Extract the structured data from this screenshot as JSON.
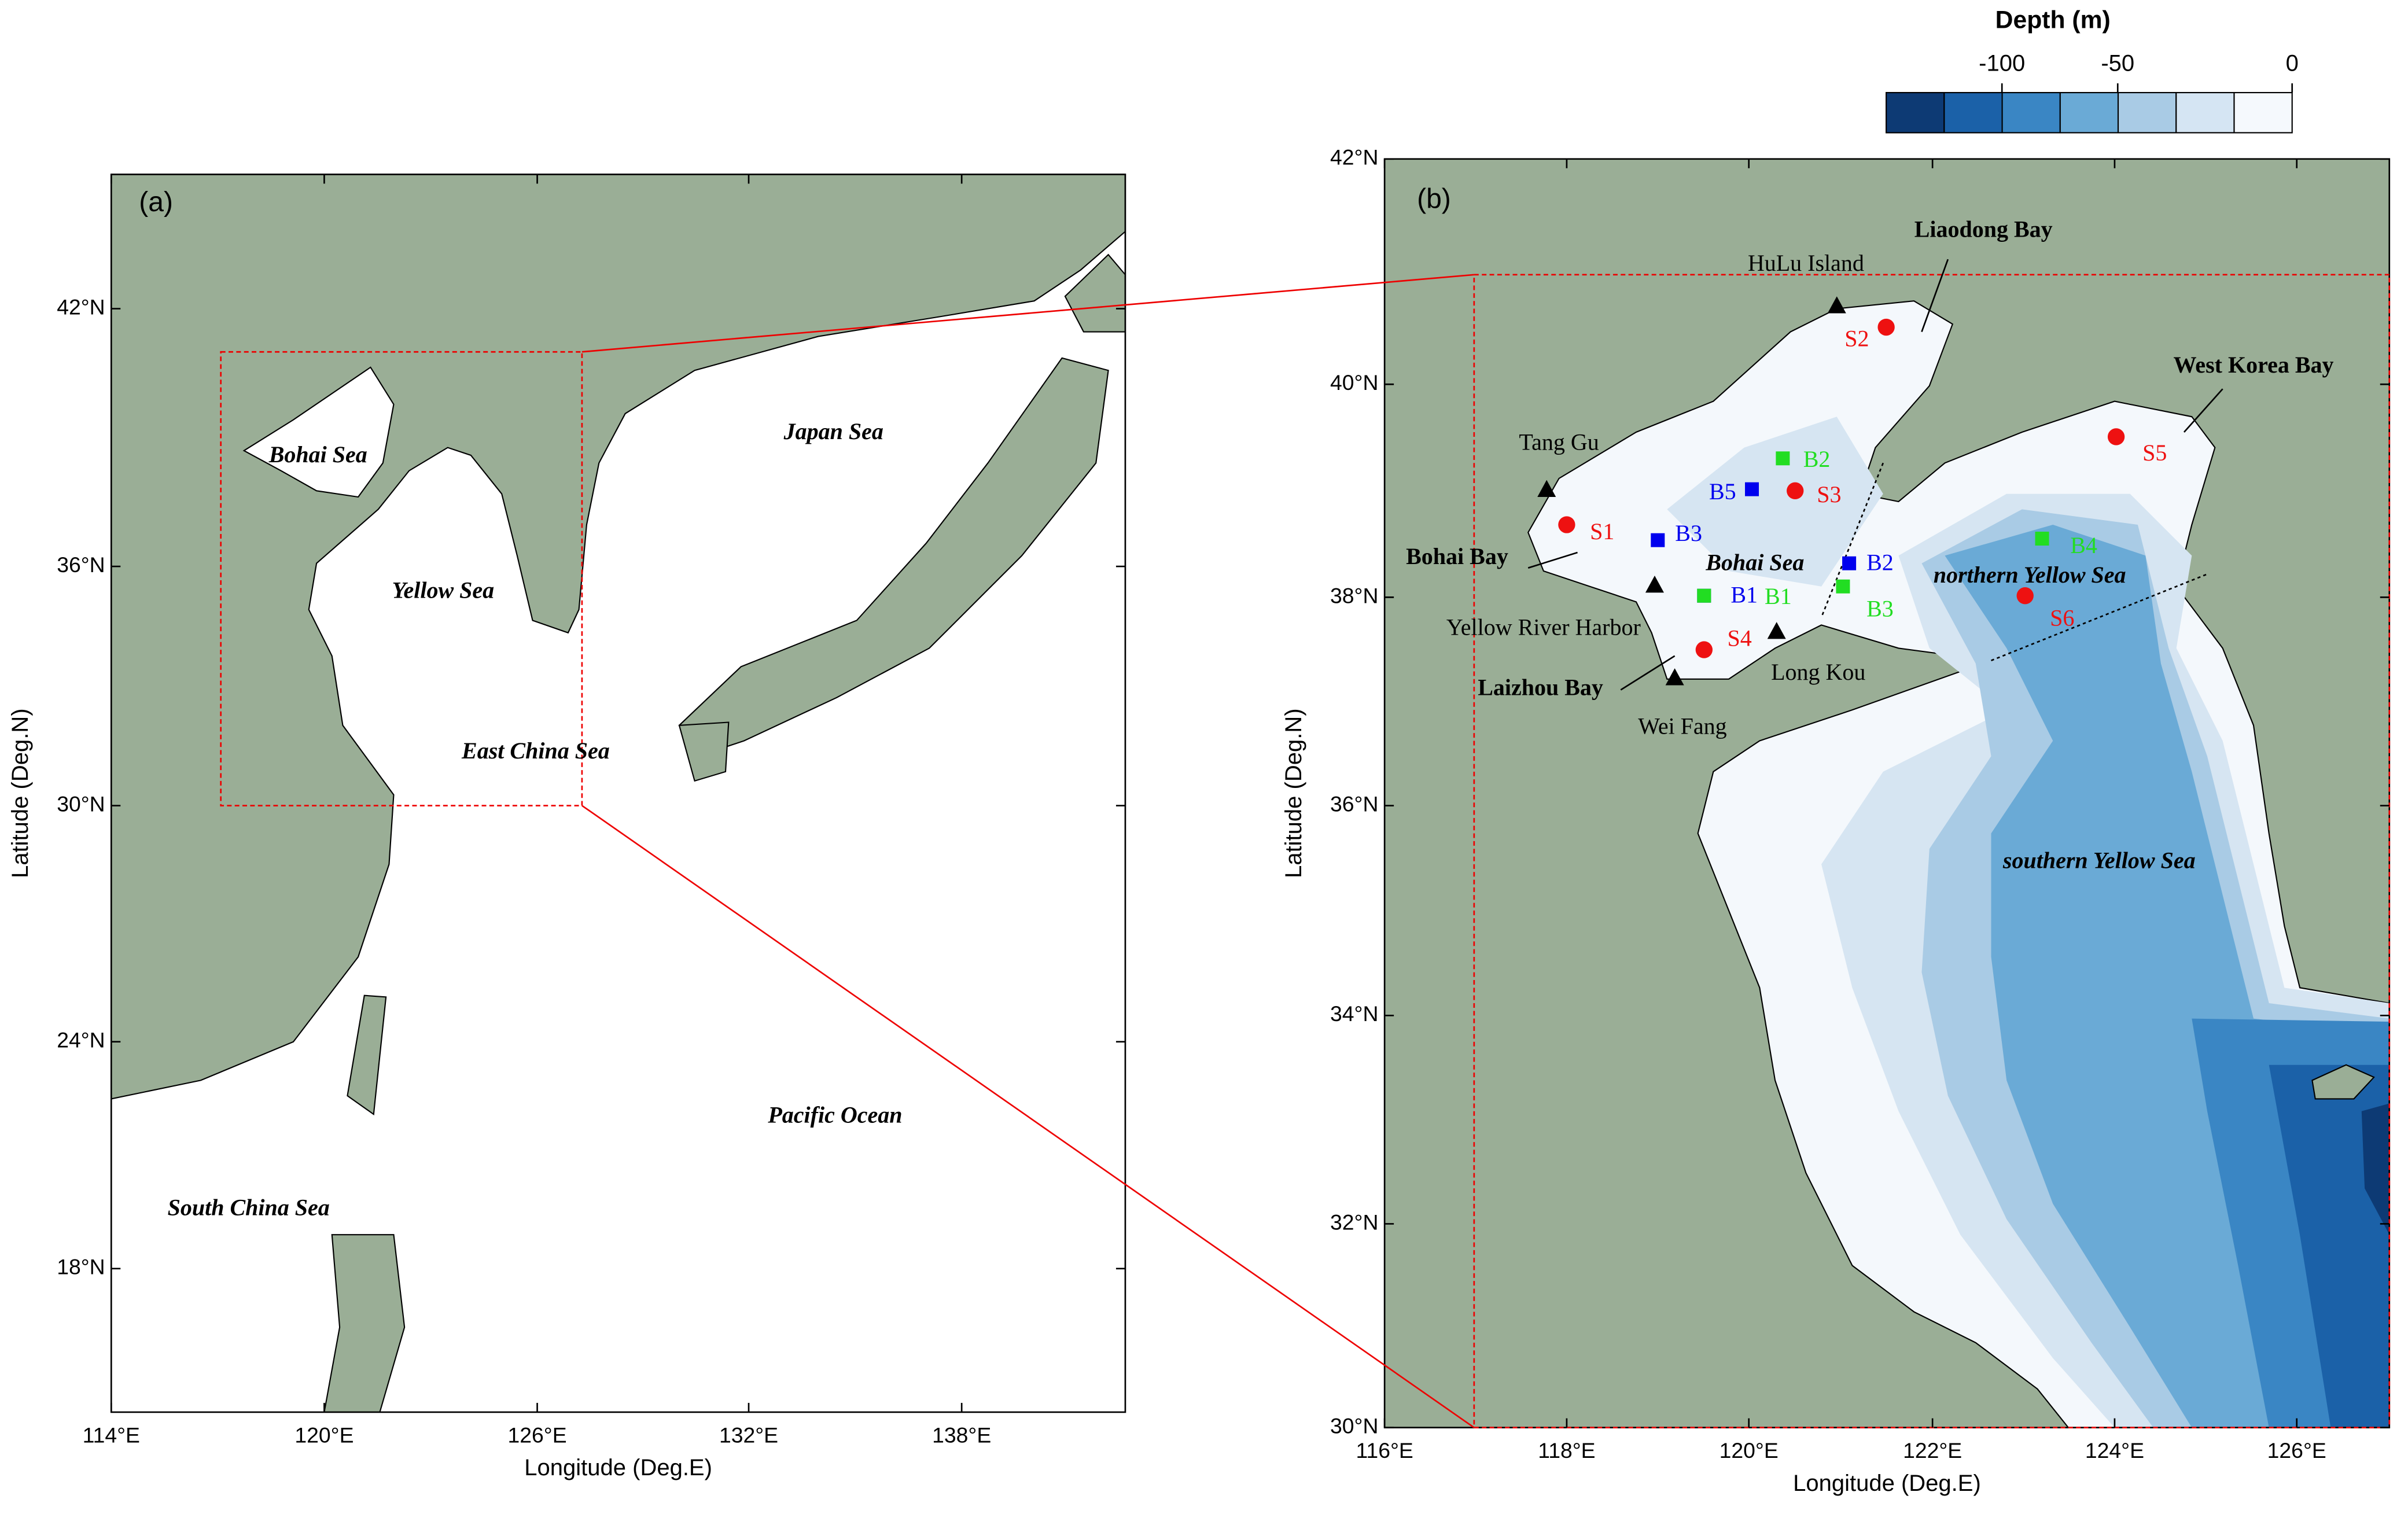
{
  "colorbar": {
    "title": "Depth (m)",
    "ticks": [
      -100,
      -50,
      0
    ]
  },
  "panel_a": {
    "label": "(a)",
    "x_axis_title": "Longitude (Deg.E)",
    "y_axis_title": "Latitude (Deg.N)",
    "x_tick_labels": [
      "114°E",
      "120°E",
      "126°E",
      "132°E",
      "138°E"
    ],
    "y_tick_labels": [
      "42°N",
      "36°N",
      "30°N",
      "24°N",
      "18°N"
    ],
    "place_names": [
      "Bohai Sea",
      "Yellow Sea",
      "Japan Sea",
      "East China Sea",
      "Pacific Ocean",
      "South China Sea"
    ]
  },
  "panel_b": {
    "label": "(b)",
    "x_axis_title": "Longitude (Deg.E)",
    "y_axis_title": "Latitude (Deg.N)",
    "x_tick_labels": [
      "116°E",
      "118°E",
      "120°E",
      "122°E",
      "124°E",
      "126°E"
    ],
    "y_tick_labels": [
      "42°N",
      "40°N",
      "38°N",
      "36°N",
      "34°N",
      "32°N",
      "30°N"
    ],
    "place_names": [
      "Liaodong Bay",
      "West Korea Bay",
      "Bohai Bay",
      "Bohai Sea",
      "northern Yellow Sea",
      "Laizhou Bay",
      "southern Yellow Sea"
    ],
    "towns": [
      "Tang Gu",
      "HuLu Island",
      "Yellow River Harbor",
      "Long Kou",
      "Wei Fang"
    ],
    "red_stations": [
      "S1",
      "S2",
      "S3",
      "S4",
      "S5",
      "S6"
    ],
    "blue_stations": [
      "B1",
      "B2",
      "B3",
      "B5"
    ],
    "green_stations": [
      "B1",
      "B2",
      "B3",
      "B4"
    ]
  }
}
